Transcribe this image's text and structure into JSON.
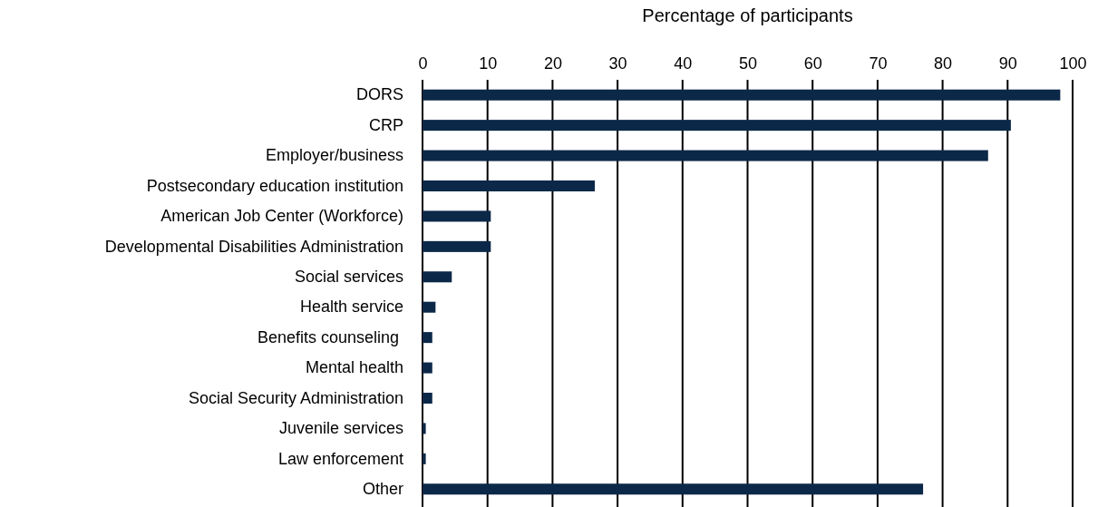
{
  "chart_data": {
    "type": "bar",
    "orientation": "horizontal",
    "xlabel": "Percentage of participants",
    "categories": [
      "DORS",
      "CRP",
      "Employer/business",
      "Postsecondary education institution",
      "American Job Center (Workforce)",
      "Developmental Disabilities Administration",
      "Social services",
      "Health service",
      "Benefits counseling ",
      "Mental health",
      "Social Security Administration",
      "Juvenile services",
      "Law enforcement",
      "Other"
    ],
    "values": [
      98.1,
      90.5,
      87.0,
      26.5,
      10.5,
      10.5,
      4.5,
      2.0,
      1.5,
      1.5,
      1.5,
      0.5,
      0.5,
      77.0
    ],
    "color": "#0c2848",
    "xlim": [
      0,
      100
    ],
    "xticks": [
      0,
      10,
      20,
      30,
      40,
      50,
      60,
      70,
      80,
      90,
      100
    ],
    "grid": "x"
  }
}
